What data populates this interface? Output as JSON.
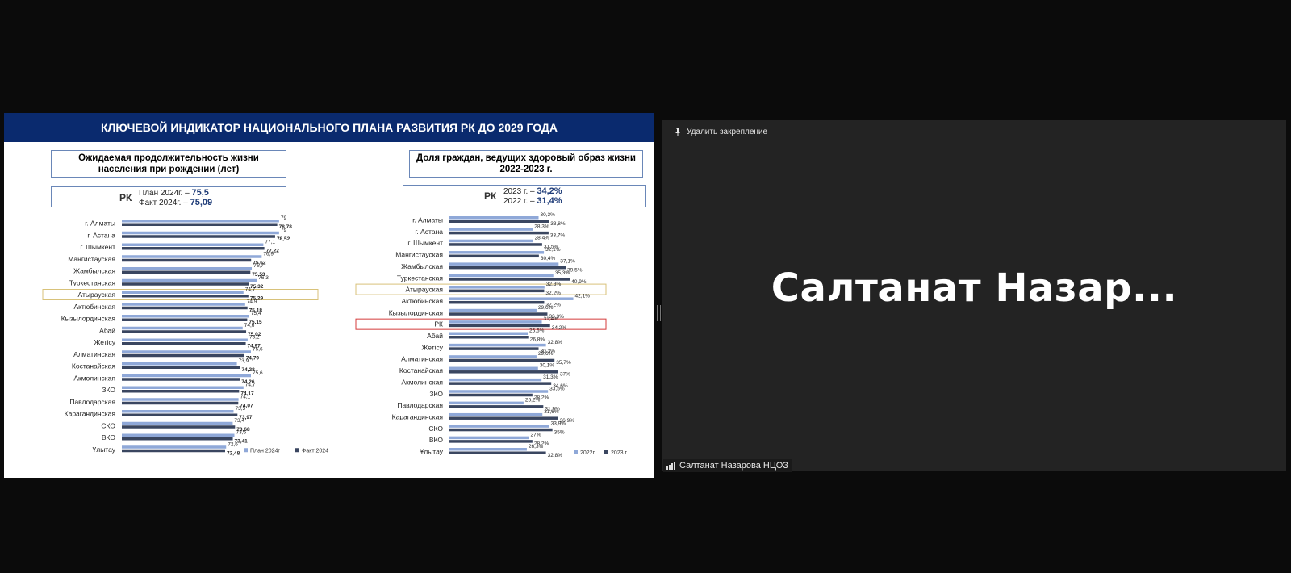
{
  "slide": {
    "header": "КЛЮЧЕВОЙ ИНДИКАТОР НАЦИОНАЛЬНОГО ПЛАНА РАЗВИТИЯ РК ДО 2029 ГОДА",
    "left": {
      "title_line1": "Ожидаемая продолжительность жизни",
      "title_line2": "населения при рождении (лет)",
      "rk_label": "РК",
      "plan_prefix": "План 2024г. – ",
      "plan_value": "75,5",
      "fact_prefix": "Факт 2024г. – ",
      "fact_value": "75,09"
    },
    "right": {
      "title_line1": "Доля граждан, ведущих здоровый образ жизни",
      "title_line2": "2022-2023 г.",
      "rk_label": "РК",
      "y2023_prefix": "2023 г. – ",
      "y2023_value": "34,2%",
      "y2022_prefix": "2022 г. – ",
      "y2022_value": "31,4%"
    }
  },
  "chart_data": [
    {
      "type": "bar",
      "orientation": "horizontal",
      "categories": [
        "г. Алматы",
        "г. Астана",
        "г. Шымкент",
        "Мангистауская",
        "Жамбылская",
        "Туркестанская",
        "Атырауская",
        "Актюбинская",
        "Кызылординская",
        "Абай",
        "Жетісу",
        "Алматинская",
        "Костанайская",
        "Акмолинская",
        "ЗКО",
        "Павлодарская",
        "Карагандинская",
        "СКО",
        "ВКО",
        "Ұлытау"
      ],
      "series": [
        {
          "name": "План 2024г",
          "color": "#8fa8d8",
          "values": [
            79,
            79,
            77.1,
            76.9,
            75.7,
            76.3,
            74.7,
            74.9,
            75.4,
            74.6,
            75.2,
            75.6,
            73.9,
            75.6,
            74.7,
            74.1,
            73.5,
            73.4,
            73.6,
            72.6
          ],
          "labels": [
            "79",
            "79",
            "77,1",
            "76,9",
            "75,7",
            "76,3",
            "74,7",
            "74,9",
            "75,4",
            "74,6",
            "75,2",
            "75,6",
            "73,9",
            "75,6",
            "74,7",
            "74,1",
            "73,5",
            "73,4",
            "73,6",
            "72,6"
          ]
        },
        {
          "name": "Факт 2024",
          "color": "#3a4660",
          "values": [
            78.78,
            78.52,
            77.22,
            75.62,
            75.53,
            75.32,
            75.29,
            75.18,
            75.15,
            75.02,
            74.97,
            74.79,
            74.28,
            74.26,
            74.17,
            74.07,
            73.97,
            73.68,
            73.41,
            72.48
          ],
          "labels": [
            "78,78",
            "78,52",
            "77,22",
            "75,62",
            "75,53",
            "75,32",
            "75,29",
            "75,18",
            "75,15",
            "75,02",
            "74,97",
            "74,79",
            "74,28",
            "74,26",
            "74,17",
            "74,07",
            "73,97",
            "73,68",
            "73,41",
            "72,48"
          ]
        }
      ],
      "highlight": [
        "Атырауская"
      ],
      "legend_position": "bottom-right"
    },
    {
      "type": "bar",
      "orientation": "horizontal",
      "categories": [
        "г. Алматы",
        "г. Астана",
        "г. Шымкент",
        "Мангистауская",
        "Жамбылская",
        "Туркестанская",
        "Атырауская",
        "Актюбинская",
        "Кызылординская",
        "РК",
        "Абай",
        "Жетісу",
        "Алматинская",
        "Костанайская",
        "Акмолинская",
        "ЗКО",
        "Павлодарская",
        "Карагандинская",
        "СКО",
        "ВКО",
        "Ұлытау"
      ],
      "series": [
        {
          "name": "2022г",
          "color": "#8fa8d8",
          "values": [
            30.3,
            28.3,
            28.4,
            32.1,
            37.1,
            35.3,
            32.3,
            42.1,
            29.6,
            31.4,
            26.6,
            32.8,
            29.6,
            30.1,
            31.3,
            33.5,
            25.2,
            31.6,
            33.9,
            27,
            26.3
          ],
          "labels": [
            "30,3%",
            "28,3%",
            "28,4%",
            "32,1%",
            "37,1%",
            "35,3%",
            "32,3%",
            "42,1%",
            "29,6%",
            "31,4%",
            "26,6%",
            "32,8%",
            "29,6%",
            "30,1%",
            "31,3%",
            "33,5%",
            "25,2%",
            "31,6%",
            "33,9%",
            "27%",
            "26,3%"
          ]
        },
        {
          "name": "2023 г",
          "color": "#3a4660",
          "values": [
            33.8,
            33.7,
            31.5,
            30.4,
            39.5,
            40.9,
            32.2,
            32.2,
            33.3,
            34.2,
            26.8,
            30.3,
            35.7,
            37,
            34.6,
            28.2,
            31.9,
            36.9,
            35,
            28.2,
            32.8
          ],
          "labels": [
            "33,8%",
            "33,7%",
            "31,5%",
            "30,4%",
            "39,5%",
            "40,9%",
            "32,2%",
            "32,2%",
            "33,3%",
            "34,2%",
            "26,8%",
            "30,3%",
            "35,7%",
            "37%",
            "34,6%",
            "28,2%",
            "31,9%",
            "36,9%",
            "35%",
            "28,2%",
            "32,8%"
          ]
        }
      ],
      "highlight": [
        "Атырауская",
        "РК"
      ],
      "legend_position": "bottom-right"
    }
  ],
  "panel": {
    "unpin_label": "Удалить закрепление",
    "speaker_display": "Салтанат  Назар...",
    "name_tag": "Салтанат Назарова НЦОЗ"
  }
}
